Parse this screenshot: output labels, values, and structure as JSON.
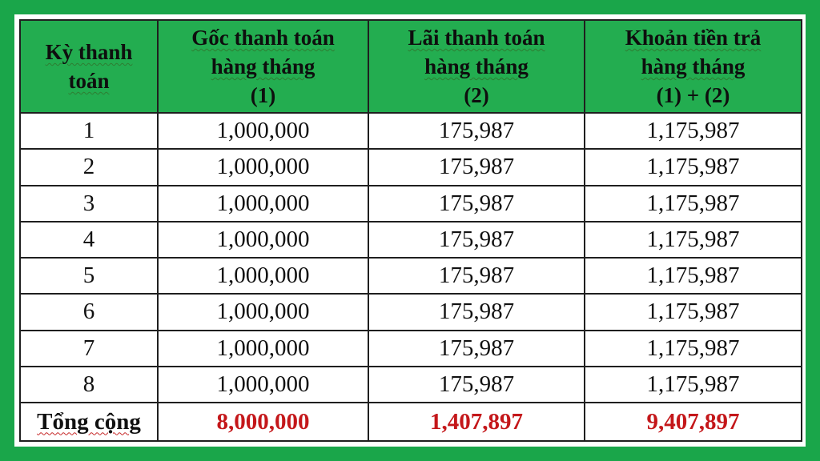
{
  "table": {
    "headers": [
      [
        "Kỳ thanh",
        "toán"
      ],
      [
        "Gốc thanh toán",
        "hàng tháng",
        "(1)"
      ],
      [
        "Lãi thanh toán",
        "hàng tháng",
        "(2)"
      ],
      [
        "Khoản tiền trả",
        "hàng tháng",
        "(1) + (2)"
      ]
    ],
    "rows": [
      [
        "1",
        "1,000,000",
        "175,987",
        "1,175,987"
      ],
      [
        "2",
        "1,000,000",
        "175,987",
        "1,175,987"
      ],
      [
        "3",
        "1,000,000",
        "175,987",
        "1,175,987"
      ],
      [
        "4",
        "1,000,000",
        "175,987",
        "1,175,987"
      ],
      [
        "5",
        "1,000,000",
        "175,987",
        "1,175,987"
      ],
      [
        "6",
        "1,000,000",
        "175,987",
        "1,175,987"
      ],
      [
        "7",
        "1,000,000",
        "175,987",
        "1,175,987"
      ],
      [
        "8",
        "1,000,000",
        "175,987",
        "1,175,987"
      ]
    ],
    "total": [
      "Tổng cộng",
      "8,000,000",
      "1,407,897",
      "9,407,897"
    ]
  },
  "colors": {
    "frame": "#1aa64a",
    "header_bg": "#23ad50",
    "total_value": "#c4171a"
  }
}
